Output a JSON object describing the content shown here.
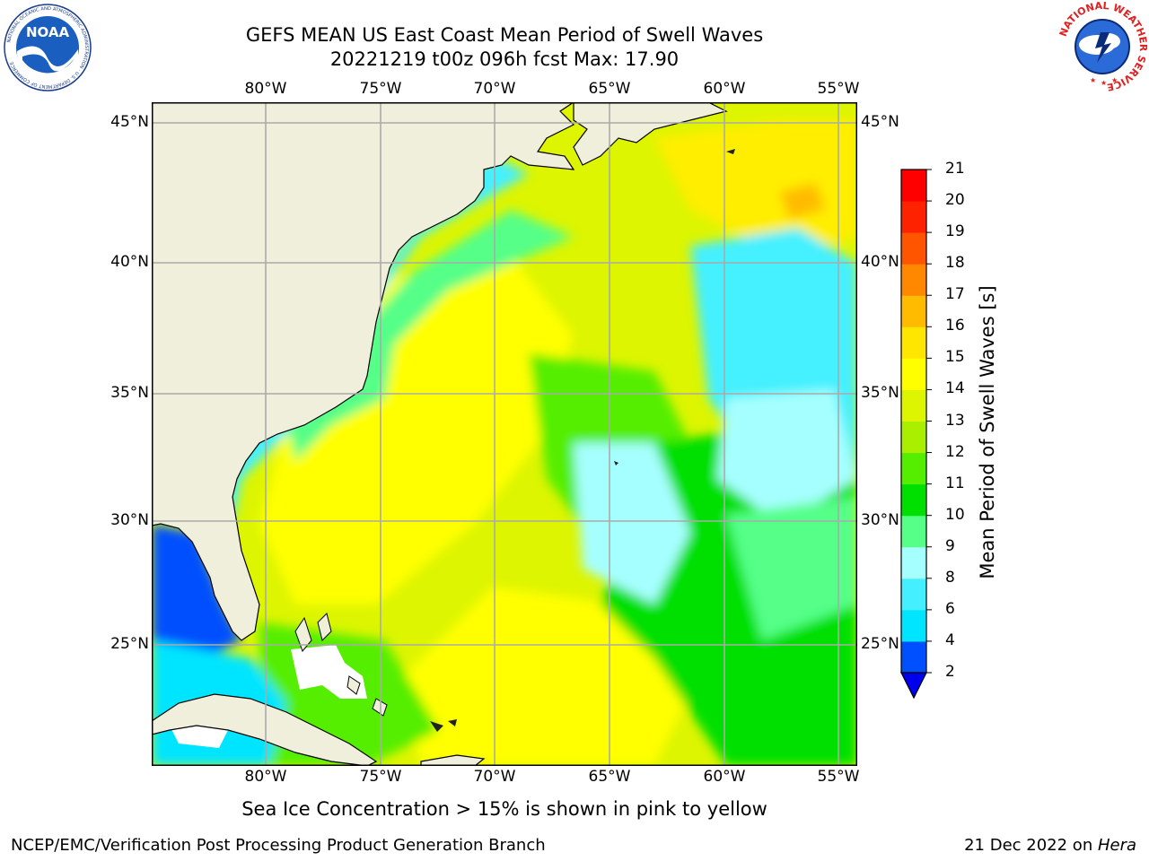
{
  "title_line1": "GEFS MEAN US East Coast Mean Period of Swell Waves",
  "title_line2": "20221219 t00z 096h fcst   Max: 17.90",
  "longitudes": [
    "80°W",
    "75°W",
    "70°W",
    "65°W",
    "60°W",
    "55°W"
  ],
  "latitudes": [
    "45°N",
    "40°N",
    "35°N",
    "30°N",
    "25°N"
  ],
  "colorbar": {
    "label": "Mean Period of Swell Waves [s]",
    "ticks": [
      "2",
      "4",
      "6",
      "8",
      "9",
      "10",
      "11",
      "12",
      "13",
      "14",
      "15",
      "16",
      "17",
      "18",
      "19",
      "20",
      "21"
    ],
    "colors": [
      "#0050ff",
      "#00e5ff",
      "#44f0ff",
      "#a6ffff",
      "#55ff88",
      "#00e000",
      "#55ee00",
      "#aaee00",
      "#ddf500",
      "#ffff00",
      "#ffe600",
      "#ffbb00",
      "#ff8800",
      "#ff5500",
      "#ff2200",
      "#ff0000"
    ],
    "extend_color": "#0000ee"
  },
  "note": "Sea Ice Concentration > 15% is shown in pink to yellow",
  "footer_left": "NCEP/EMC/Verification Post Processing Product Generation Branch",
  "footer_right_date": "21 Dec 2022 on ",
  "footer_right_host": "Hera",
  "logo_left_text": "NOAA",
  "logo_left_ring": "NATIONAL OCEANIC AND ATMOSPHERIC ADMINISTRATION · U.S. DEPARTMENT OF COMMERCE",
  "logo_right_ring": "NATIONAL WEATHER SERVICE"
}
